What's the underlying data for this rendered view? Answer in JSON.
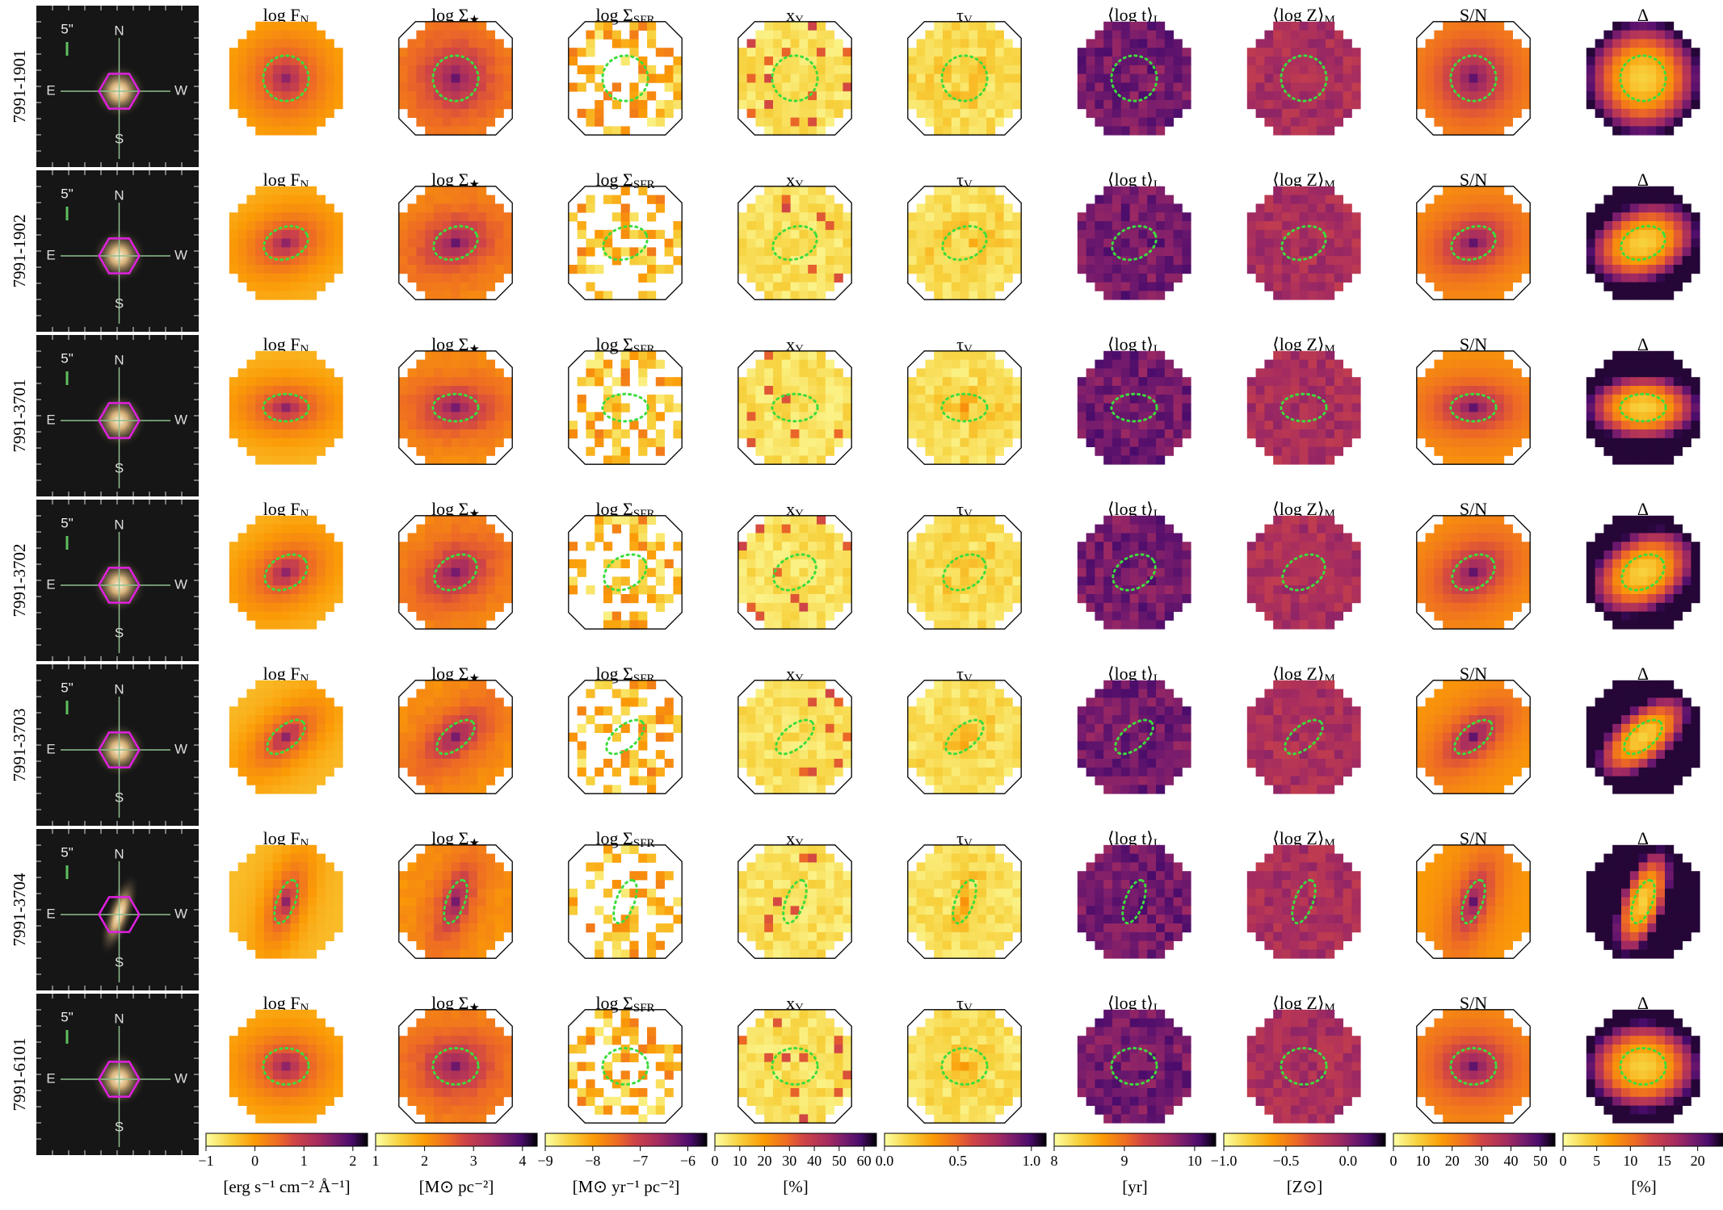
{
  "rows": [
    {
      "id": "7991-1901"
    },
    {
      "id": "7991-1902"
    },
    {
      "id": "7991-3701"
    },
    {
      "id": "7991-3702"
    },
    {
      "id": "7991-3703"
    },
    {
      "id": "7991-3704"
    },
    {
      "id": "7991-6101"
    }
  ],
  "thumbnail_labels": {
    "scale": "5\"",
    "north": "N",
    "east": "E",
    "west": "W",
    "south": "S"
  },
  "columns": [
    {
      "text": "log F",
      "sub": "N"
    },
    {
      "text": "log Σ",
      "sub": "★"
    },
    {
      "text": "log Σ",
      "sub": "SFR"
    },
    {
      "text": "x",
      "sub": "Y"
    },
    {
      "text": "τ",
      "sub": "V"
    },
    {
      "text": "⟨log t⟩",
      "sub": "L"
    },
    {
      "text": "⟨log Z⟩",
      "sub": "M"
    },
    {
      "text": "S/N"
    },
    {
      "text": "Δ"
    }
  ],
  "colorbars": [
    {
      "lim": [
        -1,
        2.3
      ],
      "ticks": [
        {
          "value": -1,
          "label": "−1"
        },
        0,
        1,
        2
      ],
      "label": "[erg s⁻¹ cm⁻² Å⁻¹]"
    },
    {
      "lim": [
        1,
        4.3
      ],
      "ticks": [
        1,
        2,
        3,
        4
      ],
      "label": "[M⊙ pc⁻²]"
    },
    {
      "lim": [
        -9,
        -5.6
      ],
      "ticks": [
        {
          "value": -9,
          "label": "−9"
        },
        {
          "value": -8,
          "label": "−8"
        },
        {
          "value": -7,
          "label": "−7"
        },
        {
          "value": -6,
          "label": "−6"
        }
      ],
      "label": "[M⊙ yr⁻¹ pc⁻²]"
    },
    {
      "lim": [
        0,
        65
      ],
      "ticks": [
        0,
        10,
        20,
        30,
        40,
        50,
        60
      ],
      "label": "[%]"
    },
    {
      "lim": [
        0,
        1.1
      ],
      "ticks": [
        {
          "value": 0,
          "label": "0.0"
        },
        0.5,
        {
          "value": 1,
          "label": "1.0"
        }
      ]
    },
    {
      "lim": [
        8,
        10.3
      ],
      "ticks": [
        8,
        9,
        10
      ],
      "label": "[yr]"
    },
    {
      "lim": [
        -1,
        0.3
      ],
      "ticks": [
        {
          "value": -1,
          "label": "−1.0"
        },
        {
          "value": -0.5,
          "label": "−0.5"
        },
        {
          "value": 0,
          "label": "0.0"
        }
      ],
      "label": "[Z⊙]"
    },
    {
      "lim": [
        0,
        55
      ],
      "ticks": [
        0,
        10,
        20,
        30,
        40,
        50
      ]
    },
    {
      "lim": [
        0,
        24
      ],
      "ticks": [
        0,
        5,
        10,
        15,
        20
      ],
      "label": "[%]"
    }
  ]
}
